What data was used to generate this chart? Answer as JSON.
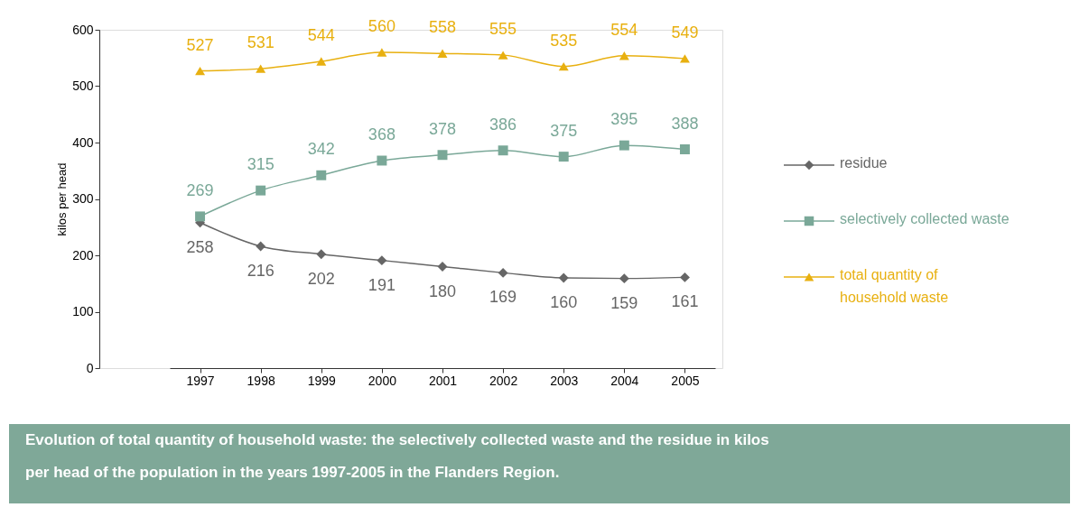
{
  "chart_data": {
    "type": "line",
    "ylabel": "kilos per head",
    "categories": [
      "1997",
      "1998",
      "1999",
      "2000",
      "2001",
      "2002",
      "2003",
      "2004",
      "2005"
    ],
    "series": [
      {
        "name": "residue",
        "color": "#666666",
        "marker": "diamond",
        "values": [
          258,
          216,
          202,
          191,
          180,
          169,
          160,
          159,
          161
        ]
      },
      {
        "name": "selectively collected waste",
        "color": "#7aa898",
        "marker": "square",
        "values": [
          269,
          315,
          342,
          368,
          378,
          386,
          375,
          395,
          388
        ]
      },
      {
        "name": "total quantity of household waste",
        "color": "#e8b010",
        "marker": "triangle",
        "values": [
          527,
          531,
          544,
          560,
          558,
          555,
          535,
          554,
          549
        ]
      }
    ],
    "ylim": [
      0,
      600
    ],
    "yticks": [
      0,
      100,
      200,
      300,
      400,
      500,
      600
    ],
    "grid": false,
    "legend": "right",
    "data_labels": true,
    "line_style": "solid",
    "annotations": [
      "Evolution of total quantity of household waste: the selectively collected waste and the residue in kilos per head of the population in the years 1997-2005 in the Flanders Region."
    ]
  }
}
